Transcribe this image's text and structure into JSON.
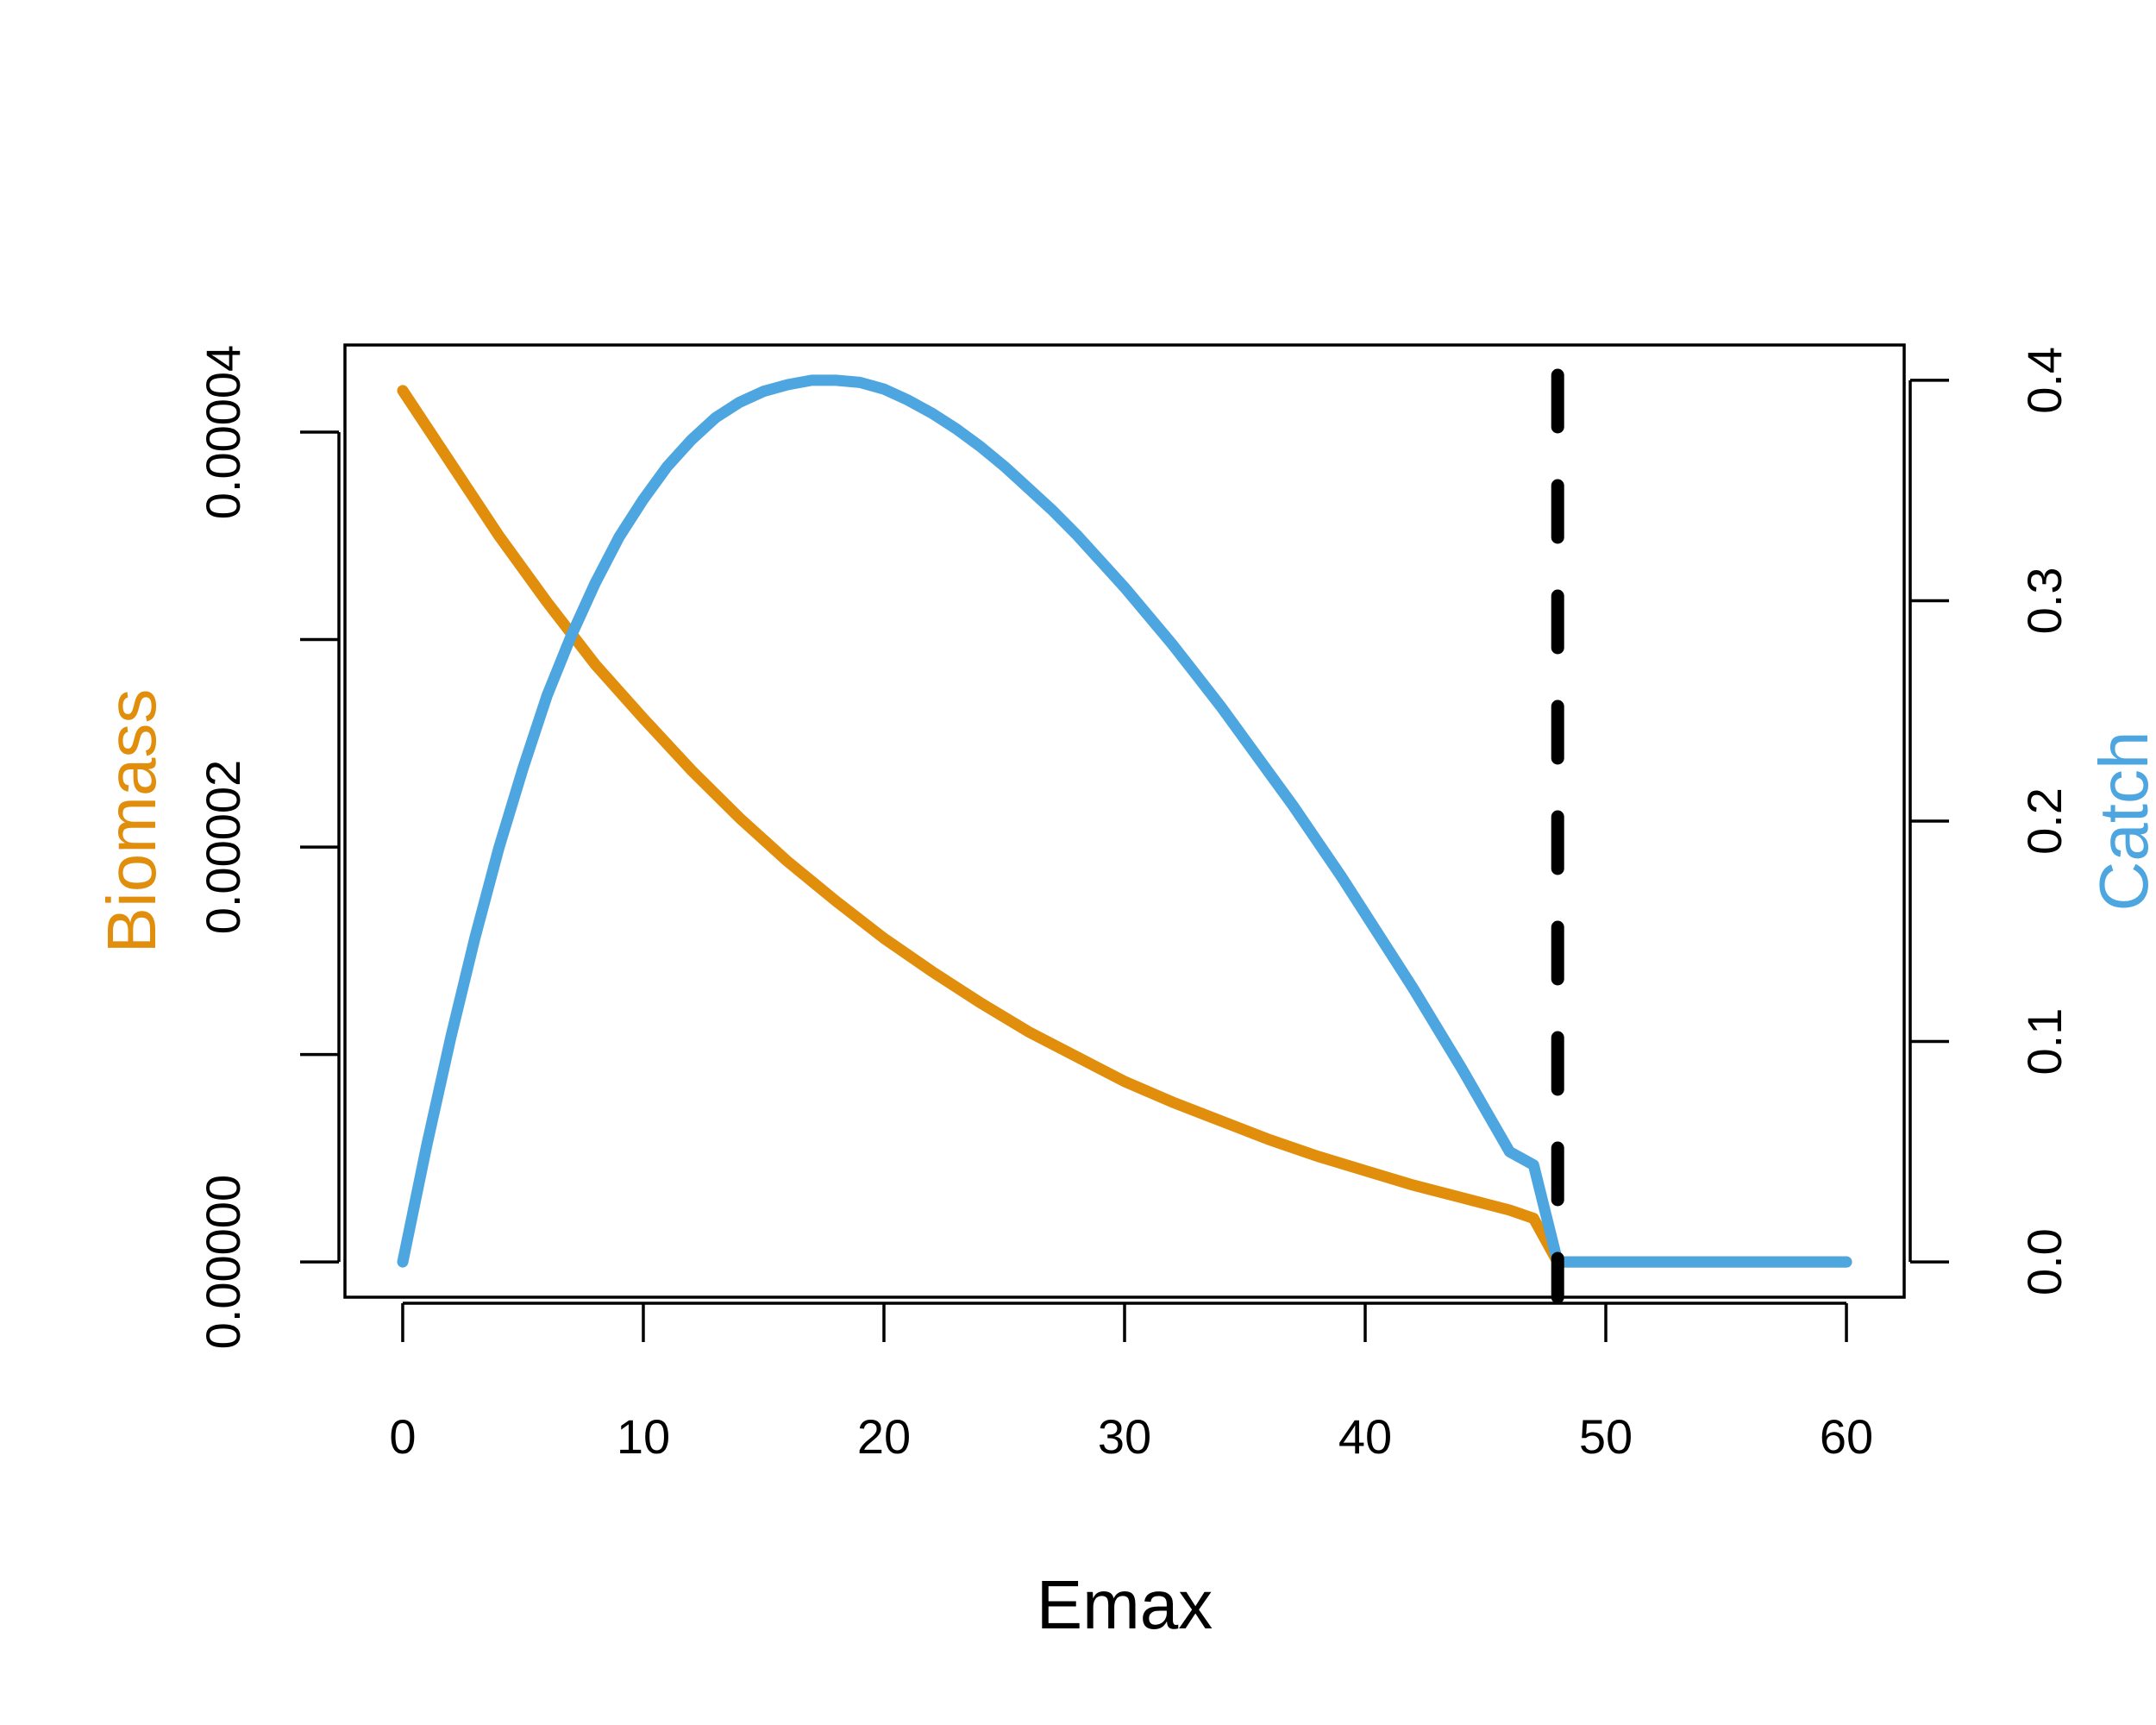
{
  "chart_data": {
    "type": "line",
    "xlabel": "Emax",
    "y_left_label": "Biomass",
    "y_right_label": "Catch",
    "x_ticks": [
      "0",
      "10",
      "20",
      "30",
      "40",
      "50",
      "60"
    ],
    "x_tick_values": [
      0,
      10,
      20,
      30,
      40,
      50,
      60
    ],
    "y_left_ticks": [
      "0.00000",
      "0.00002",
      "0.00004"
    ],
    "y_left_tick_values": [
      0,
      1e-05,
      2e-05,
      3e-05,
      4e-05
    ],
    "y_left_label_values": [
      0,
      2e-05,
      4e-05
    ],
    "y_right_ticks": [
      "0.0",
      "0.1",
      "0.2",
      "0.3",
      "0.4"
    ],
    "y_right_tick_values": [
      0,
      0.1,
      0.2,
      0.3,
      0.4
    ],
    "xlim": [
      -2.4,
      62.4
    ],
    "y_left_lim": [
      -1.7e-06,
      4.42e-05
    ],
    "y_right_lim": [
      -0.016,
      0.416
    ],
    "series": [
      {
        "name": "Biomass",
        "axis": "left",
        "color": "#E08E0B",
        "x": [
          0,
          2,
          4,
          6,
          8,
          10,
          12,
          14,
          16,
          18,
          20,
          22,
          24,
          26,
          28,
          30,
          32,
          34,
          36,
          38,
          40,
          42,
          44,
          46,
          47,
          48,
          50,
          52,
          54,
          56,
          58,
          60
        ],
        "values": [
          4.2e-05,
          3.85e-05,
          3.5e-05,
          3.18e-05,
          2.88e-05,
          2.62e-05,
          2.37e-05,
          2.14e-05,
          1.93e-05,
          1.74e-05,
          1.56e-05,
          1.4e-05,
          1.25e-05,
          1.11e-05,
          9.9e-06,
          8.7e-06,
          7.7e-06,
          6.8e-06,
          5.9e-06,
          5.1e-06,
          4.4e-06,
          3.7e-06,
          3.1e-06,
          2.5e-06,
          2.1e-06,
          0,
          0,
          0,
          0,
          0,
          0,
          0
        ]
      },
      {
        "name": "Catch",
        "axis": "right",
        "color": "#4EA6E0",
        "x": [
          0,
          1,
          2,
          3,
          4,
          5,
          6,
          7,
          8,
          9,
          10,
          11,
          12,
          13,
          14,
          15,
          16,
          17,
          18,
          19,
          20,
          21,
          22,
          23,
          24,
          25,
          26,
          27,
          28,
          29,
          30,
          31,
          32,
          33,
          34,
          35,
          36,
          37,
          38,
          39,
          40,
          41,
          42,
          43,
          44,
          45,
          46,
          47,
          48,
          50,
          52,
          54,
          56,
          58,
          60
        ],
        "values": [
          0,
          0.053,
          0.102,
          0.147,
          0.188,
          0.224,
          0.257,
          0.284,
          0.308,
          0.329,
          0.346,
          0.361,
          0.373,
          0.383,
          0.39,
          0.395,
          0.398,
          0.4,
          0.4,
          0.399,
          0.396,
          0.391,
          0.385,
          0.378,
          0.37,
          0.361,
          0.351,
          0.341,
          0.33,
          0.318,
          0.306,
          0.293,
          0.28,
          0.266,
          0.252,
          0.237,
          0.222,
          0.207,
          0.191,
          0.175,
          0.158,
          0.141,
          0.124,
          0.106,
          0.088,
          0.069,
          0.05,
          0.044,
          0,
          0,
          0,
          0,
          0,
          0,
          0
        ]
      }
    ],
    "vline": {
      "x": 48,
      "color": "#000000",
      "style": "dashed"
    },
    "grid": false,
    "legend": "none"
  }
}
